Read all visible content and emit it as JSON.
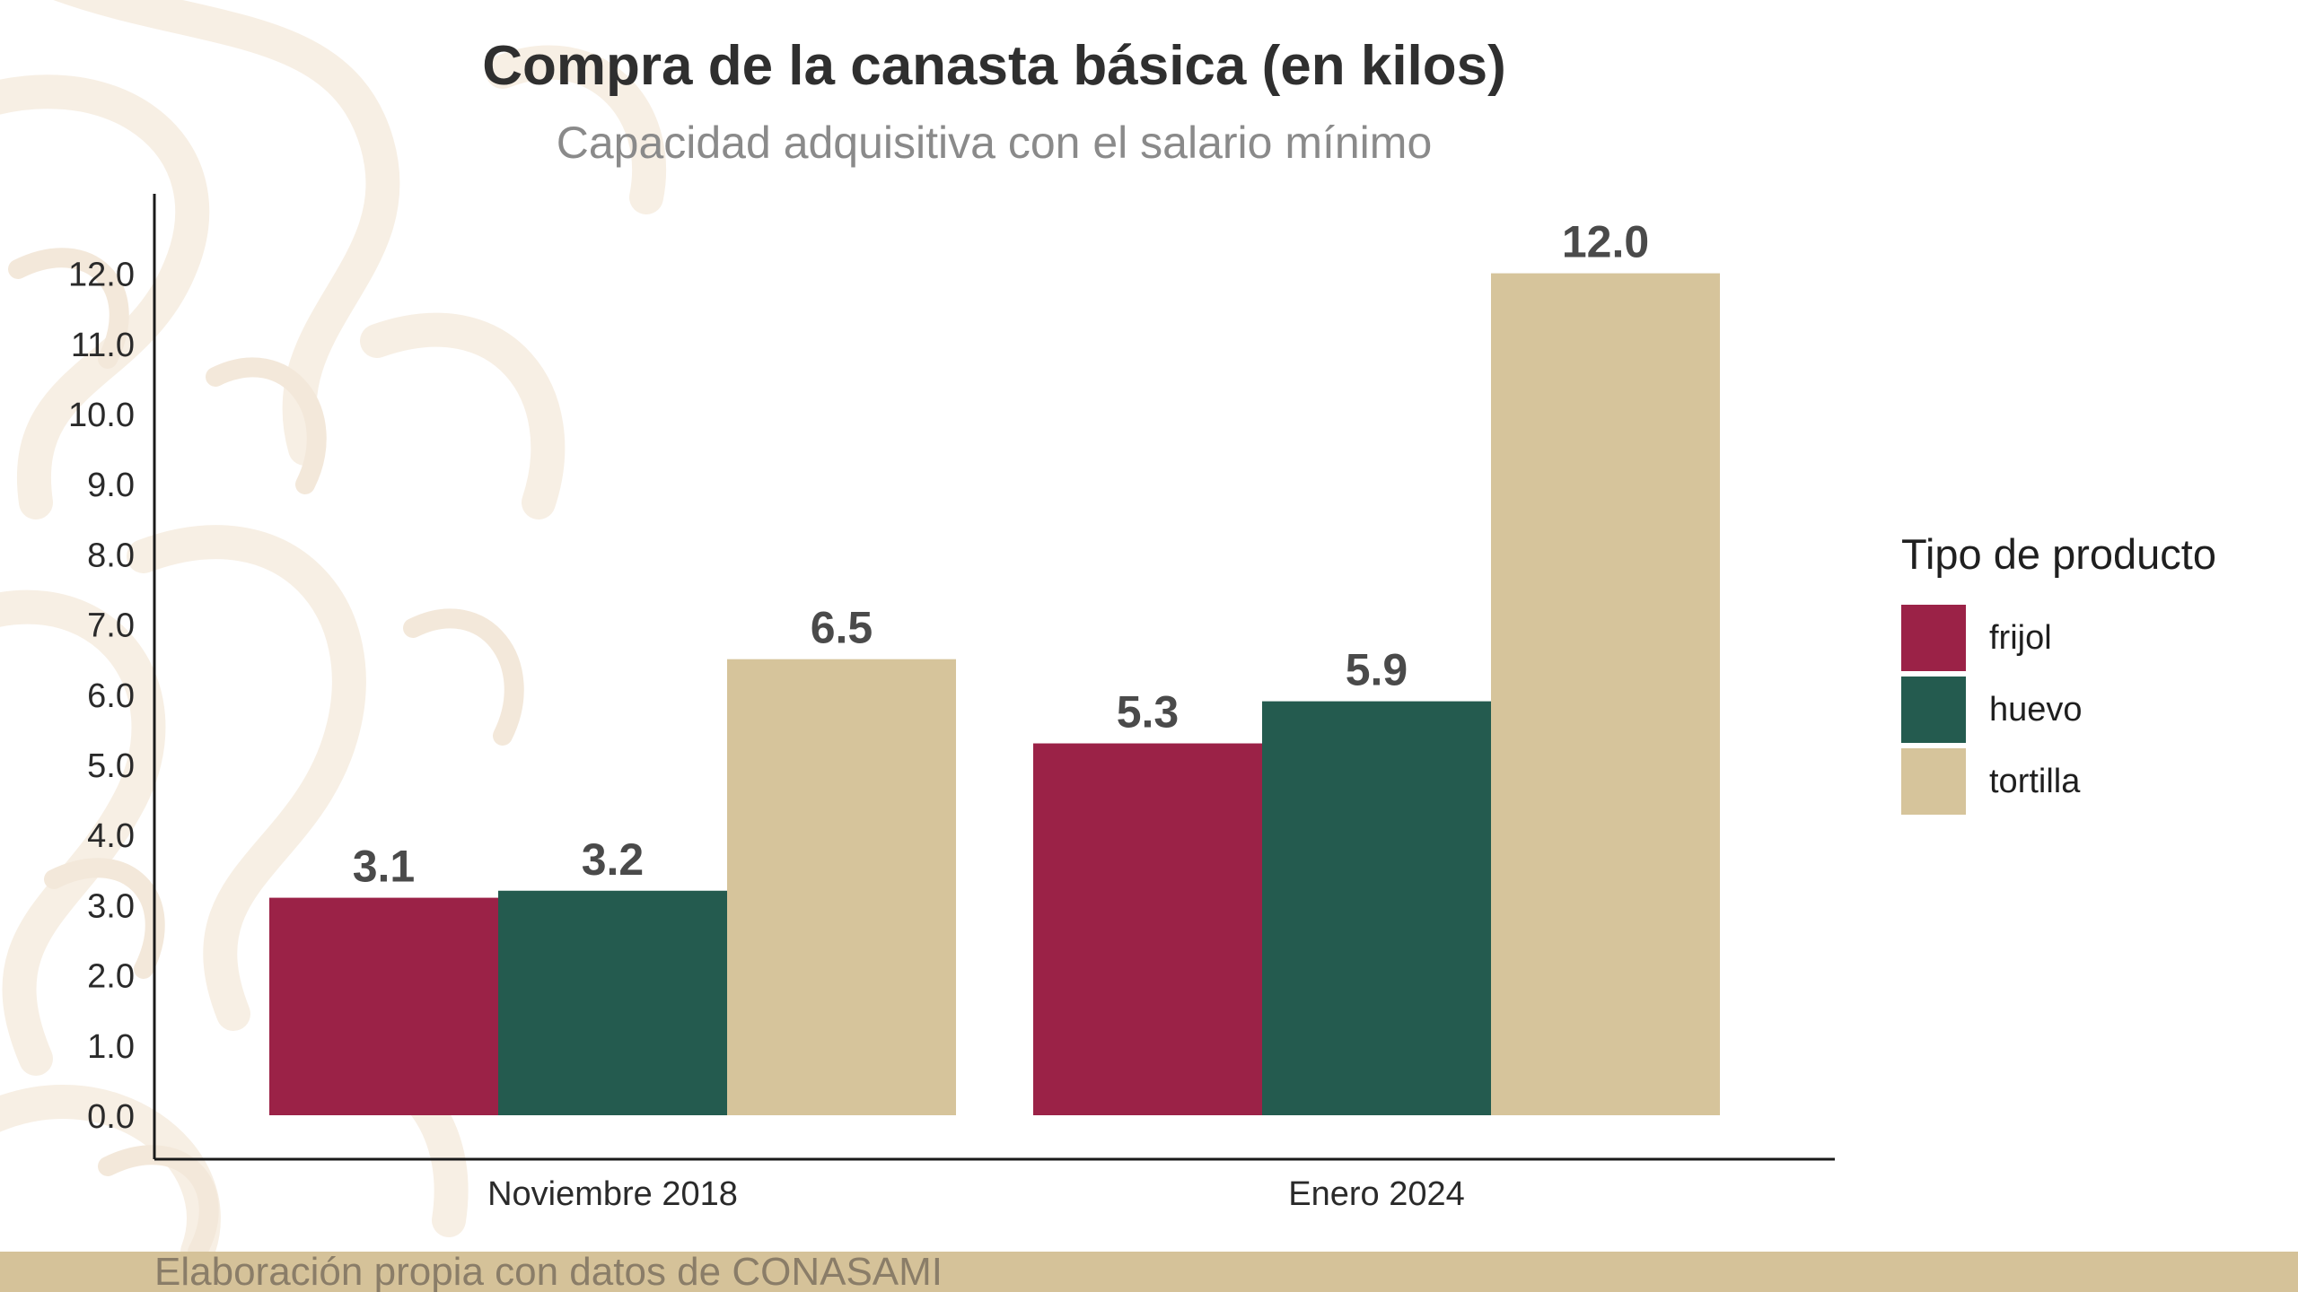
{
  "chart_data": {
    "type": "bar",
    "title": "Compra de la canasta básica (en kilos)",
    "subtitle": "Capacidad adquisitiva con el salario mínimo",
    "xlabel": "",
    "ylabel": "",
    "categories": [
      "Noviembre 2018",
      "Enero 2024"
    ],
    "series": [
      {
        "name": "frijol",
        "values": [
          3.1,
          5.3
        ],
        "labels": [
          "3.1",
          "5.3"
        ],
        "color": "#9b2247"
      },
      {
        "name": "huevo",
        "values": [
          3.2,
          5.9
        ],
        "labels": [
          "3.2",
          "5.9"
        ],
        "color": "#245b4f"
      },
      {
        "name": "tortilla",
        "values": [
          6.5,
          12.0
        ],
        "labels": [
          "6.5",
          "12.0"
        ],
        "color": "#d6c49b"
      }
    ],
    "ylim": [
      0,
      12.5
    ],
    "yticks": [
      0,
      1,
      2,
      3,
      4,
      5,
      6,
      7,
      8,
      9,
      10,
      11,
      12
    ],
    "ytick_labels": [
      "0.0",
      "1.0",
      "2.0",
      "3.0",
      "4.0",
      "5.0",
      "6.0",
      "7.0",
      "8.0",
      "9.0",
      "10.0",
      "11.0",
      "12.0"
    ],
    "grid": false,
    "legend": {
      "title": "Tipo de producto",
      "position": "right"
    }
  },
  "footer": {
    "source_text": "Elaboración propia con datos de CONASAMI",
    "bar_color": "#d5c299"
  },
  "colors": {
    "title": "#2f2f2f",
    "subtitle": "#8a8a8a",
    "value_labels": "#4a4a4a",
    "axis": "#1a1a1a"
  }
}
